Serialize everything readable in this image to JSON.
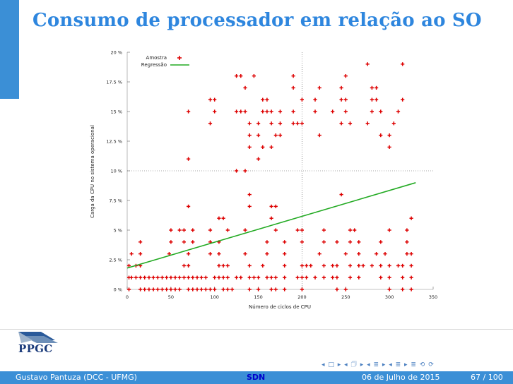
{
  "slide": {
    "title": "Consumo de processador em relação ao SO",
    "logo_text": "PPGC",
    "nav_symbols": "◂ □ ▸  ◂ 🗇 ▸  ◂ ≣ ▸  ◂ ≣ ▸    ≣    ⟲ ⟳",
    "footer": {
      "author": "Gustavo Pantuza (DCC - UFMG)",
      "center": "SDN",
      "date": "06 de Julho de 2015",
      "page": "67 / 100"
    }
  },
  "colors": {
    "accent": "#3b8fd6",
    "title": "#2e86de",
    "points": "#dd0000",
    "regression": "#22aa22"
  },
  "chart_data": {
    "type": "scatter",
    "xlabel": "Número de ciclos de CPU",
    "ylabel": "Carga da CPU no sistema operacional",
    "xlim": [
      0,
      350
    ],
    "ylim": [
      0,
      20
    ],
    "x_ticks": [
      "0",
      "50",
      "100",
      "150",
      "200",
      "250",
      "300",
      "350"
    ],
    "y_ticks": [
      "0 %",
      "2.5 %",
      "5 %",
      "7.5 %",
      "10 %",
      "12.5 %",
      "15 %",
      "17.5 %",
      "20 %"
    ],
    "reference_lines": {
      "x": 200,
      "y": 10
    },
    "legend": {
      "position": "top-left",
      "entries": [
        "Amostra",
        "Regressão"
      ]
    },
    "series": [
      {
        "name": "Amostra",
        "points": [
          [
            2,
            0
          ],
          [
            15,
            0
          ],
          [
            20,
            0
          ],
          [
            25,
            0
          ],
          [
            30,
            0
          ],
          [
            35,
            0
          ],
          [
            40,
            0
          ],
          [
            45,
            0
          ],
          [
            50,
            0
          ],
          [
            55,
            0
          ],
          [
            60,
            0
          ],
          [
            70,
            0
          ],
          [
            75,
            0
          ],
          [
            80,
            0
          ],
          [
            85,
            0
          ],
          [
            90,
            0
          ],
          [
            95,
            0
          ],
          [
            100,
            0
          ],
          [
            110,
            0
          ],
          [
            115,
            0
          ],
          [
            120,
            0
          ],
          [
            140,
            0
          ],
          [
            150,
            0
          ],
          [
            165,
            0
          ],
          [
            170,
            0
          ],
          [
            180,
            0
          ],
          [
            200,
            0
          ],
          [
            240,
            0
          ],
          [
            250,
            0
          ],
          [
            300,
            0
          ],
          [
            315,
            0
          ],
          [
            325,
            0
          ],
          [
            2,
            1
          ],
          [
            5,
            1
          ],
          [
            10,
            1
          ],
          [
            15,
            1
          ],
          [
            20,
            1
          ],
          [
            25,
            1
          ],
          [
            30,
            1
          ],
          [
            35,
            1
          ],
          [
            40,
            1
          ],
          [
            45,
            1
          ],
          [
            50,
            1
          ],
          [
            55,
            1
          ],
          [
            60,
            1
          ],
          [
            65,
            1
          ],
          [
            70,
            1
          ],
          [
            75,
            1
          ],
          [
            80,
            1
          ],
          [
            85,
            1
          ],
          [
            90,
            1
          ],
          [
            100,
            1
          ],
          [
            105,
            1
          ],
          [
            110,
            1
          ],
          [
            115,
            1
          ],
          [
            125,
            1
          ],
          [
            130,
            1
          ],
          [
            140,
            1
          ],
          [
            145,
            1
          ],
          [
            150,
            1
          ],
          [
            160,
            1
          ],
          [
            165,
            1
          ],
          [
            170,
            1
          ],
          [
            180,
            1
          ],
          [
            195,
            1
          ],
          [
            200,
            1
          ],
          [
            205,
            1
          ],
          [
            215,
            1
          ],
          [
            225,
            1
          ],
          [
            235,
            1
          ],
          [
            240,
            1
          ],
          [
            255,
            1
          ],
          [
            265,
            1
          ],
          [
            290,
            1
          ],
          [
            300,
            1
          ],
          [
            315,
            1
          ],
          [
            325,
            1
          ],
          [
            2,
            2
          ],
          [
            10,
            2
          ],
          [
            15,
            2
          ],
          [
            65,
            2
          ],
          [
            70,
            2
          ],
          [
            105,
            2
          ],
          [
            110,
            2
          ],
          [
            115,
            2
          ],
          [
            140,
            2
          ],
          [
            155,
            2
          ],
          [
            180,
            2
          ],
          [
            200,
            2
          ],
          [
            205,
            2
          ],
          [
            210,
            2
          ],
          [
            225,
            2
          ],
          [
            235,
            2
          ],
          [
            240,
            2
          ],
          [
            255,
            2
          ],
          [
            265,
            2
          ],
          [
            270,
            2
          ],
          [
            280,
            2
          ],
          [
            290,
            2
          ],
          [
            300,
            2
          ],
          [
            310,
            2
          ],
          [
            315,
            2
          ],
          [
            325,
            2
          ],
          [
            5,
            3
          ],
          [
            15,
            3
          ],
          [
            48,
            3
          ],
          [
            70,
            3
          ],
          [
            95,
            3
          ],
          [
            105,
            3
          ],
          [
            135,
            3
          ],
          [
            160,
            3
          ],
          [
            180,
            3
          ],
          [
            220,
            3
          ],
          [
            250,
            3
          ],
          [
            265,
            3
          ],
          [
            285,
            3
          ],
          [
            295,
            3
          ],
          [
            320,
            3
          ],
          [
            325,
            3
          ],
          [
            15,
            4
          ],
          [
            50,
            4
          ],
          [
            65,
            4
          ],
          [
            75,
            4
          ],
          [
            95,
            4
          ],
          [
            105,
            4
          ],
          [
            160,
            4
          ],
          [
            180,
            4
          ],
          [
            200,
            4
          ],
          [
            225,
            4
          ],
          [
            240,
            4
          ],
          [
            255,
            4
          ],
          [
            265,
            4
          ],
          [
            290,
            4
          ],
          [
            320,
            4
          ],
          [
            50,
            5
          ],
          [
            60,
            5
          ],
          [
            65,
            5
          ],
          [
            75,
            5
          ],
          [
            95,
            5
          ],
          [
            115,
            5
          ],
          [
            135,
            5
          ],
          [
            170,
            5
          ],
          [
            195,
            5
          ],
          [
            200,
            5
          ],
          [
            225,
            5
          ],
          [
            255,
            5
          ],
          [
            260,
            5
          ],
          [
            300,
            5
          ],
          [
            320,
            5
          ],
          [
            105,
            6
          ],
          [
            110,
            6
          ],
          [
            165,
            6
          ],
          [
            325,
            6
          ],
          [
            70,
            7
          ],
          [
            140,
            7
          ],
          [
            165,
            7
          ],
          [
            170,
            7
          ],
          [
            140,
            8
          ],
          [
            245,
            8
          ],
          [
            125,
            10
          ],
          [
            135,
            10
          ],
          [
            70,
            11
          ],
          [
            150,
            11
          ],
          [
            140,
            12
          ],
          [
            155,
            12
          ],
          [
            165,
            12
          ],
          [
            300,
            12
          ],
          [
            140,
            13
          ],
          [
            150,
            13
          ],
          [
            170,
            13
          ],
          [
            175,
            13
          ],
          [
            220,
            13
          ],
          [
            290,
            13
          ],
          [
            300,
            13
          ],
          [
            95,
            14
          ],
          [
            140,
            14
          ],
          [
            150,
            14
          ],
          [
            165,
            14
          ],
          [
            175,
            14
          ],
          [
            190,
            14
          ],
          [
            195,
            14
          ],
          [
            200,
            14
          ],
          [
            245,
            14
          ],
          [
            255,
            14
          ],
          [
            275,
            14
          ],
          [
            305,
            14
          ],
          [
            70,
            15
          ],
          [
            100,
            15
          ],
          [
            125,
            15
          ],
          [
            130,
            15
          ],
          [
            135,
            15
          ],
          [
            155,
            15
          ],
          [
            160,
            15
          ],
          [
            165,
            15
          ],
          [
            175,
            15
          ],
          [
            190,
            15
          ],
          [
            215,
            15
          ],
          [
            235,
            15
          ],
          [
            250,
            15
          ],
          [
            280,
            15
          ],
          [
            290,
            15
          ],
          [
            310,
            15
          ],
          [
            95,
            16
          ],
          [
            100,
            16
          ],
          [
            155,
            16
          ],
          [
            160,
            16
          ],
          [
            200,
            16
          ],
          [
            215,
            16
          ],
          [
            245,
            16
          ],
          [
            250,
            16
          ],
          [
            280,
            16
          ],
          [
            285,
            16
          ],
          [
            315,
            16
          ],
          [
            135,
            17
          ],
          [
            190,
            17
          ],
          [
            220,
            17
          ],
          [
            245,
            17
          ],
          [
            280,
            17
          ],
          [
            285,
            17
          ],
          [
            125,
            18
          ],
          [
            130,
            18
          ],
          [
            145,
            18
          ],
          [
            190,
            18
          ],
          [
            250,
            18
          ],
          [
            275,
            19
          ],
          [
            315,
            19
          ]
        ]
      },
      {
        "name": "Regressão",
        "line": [
          [
            0,
            1.8
          ],
          [
            330,
            9.0
          ]
        ]
      }
    ]
  }
}
